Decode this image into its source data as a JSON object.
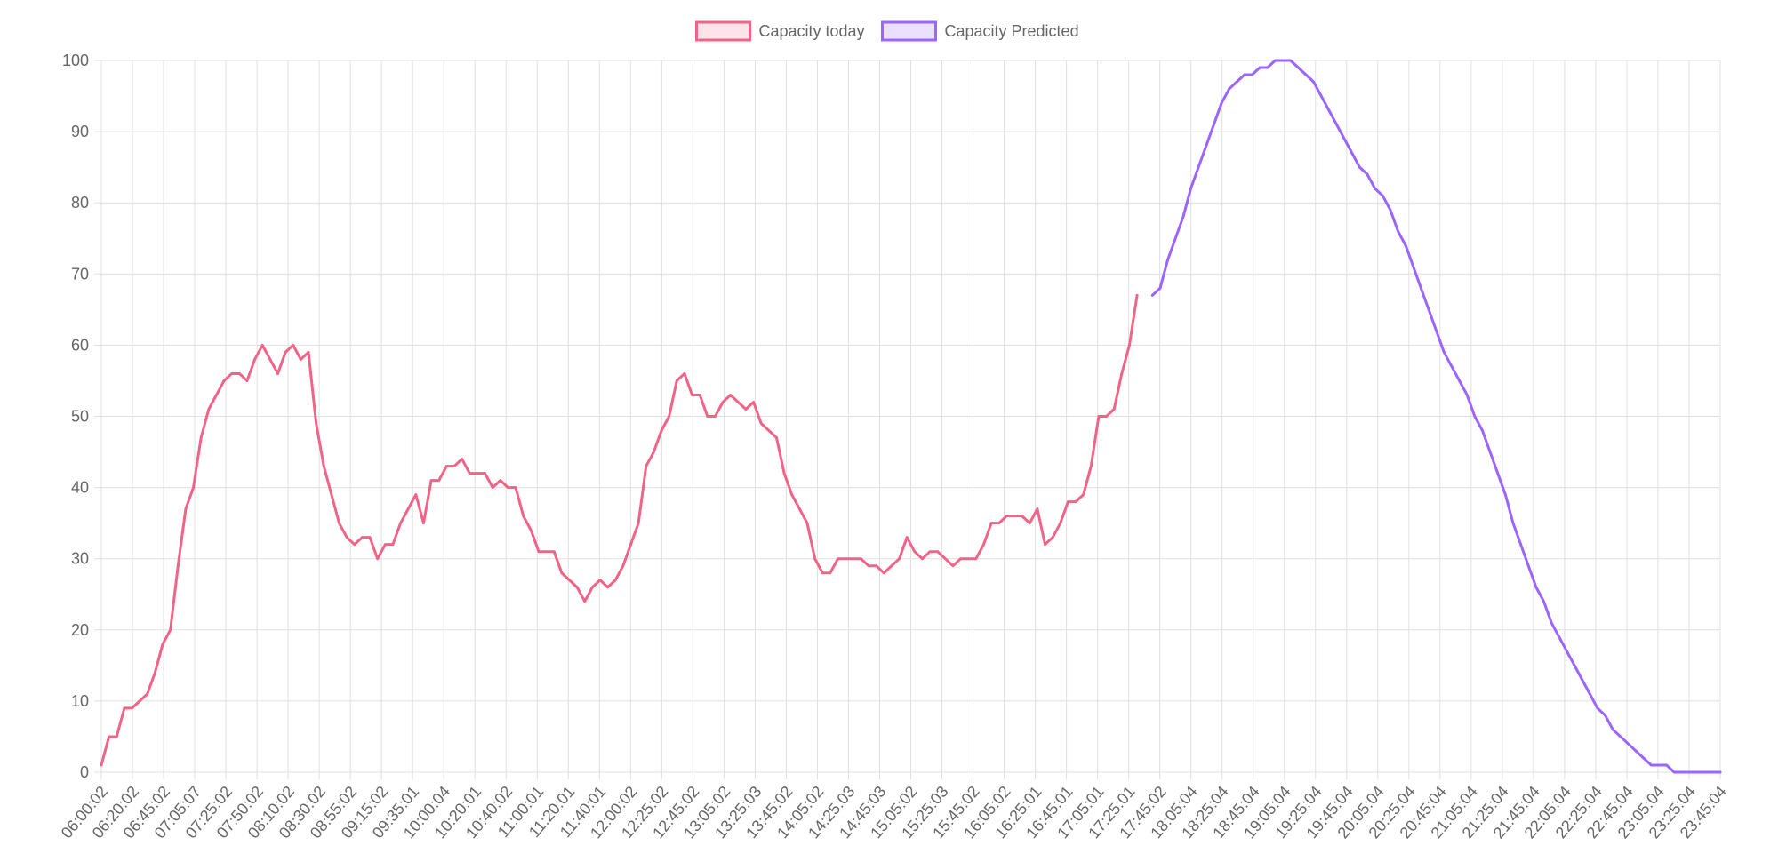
{
  "chart_data": {
    "type": "line",
    "title": "",
    "xlabel": "",
    "ylabel": "",
    "ylim": [
      0,
      100
    ],
    "y_ticks": [
      0,
      10,
      20,
      30,
      40,
      50,
      60,
      70,
      80,
      90,
      100
    ],
    "grid": true,
    "legend_position": "top-center",
    "x_tick_labels": [
      "06:00:02",
      "06:20:02",
      "06:45:02",
      "07:05:07",
      "07:25:02",
      "07:50:02",
      "08:10:02",
      "08:30:02",
      "08:55:02",
      "09:15:02",
      "09:35:01",
      "10:00:04",
      "10:20:01",
      "10:40:02",
      "11:00:01",
      "11:20:01",
      "11:40:01",
      "12:00:02",
      "12:25:02",
      "12:45:02",
      "13:05:02",
      "13:25:03",
      "13:45:02",
      "14:05:02",
      "14:25:03",
      "14:45:03",
      "15:05:02",
      "15:25:03",
      "15:45:02",
      "16:05:02",
      "16:25:01",
      "16:45:01",
      "17:05:01",
      "17:25:01",
      "17:45:02",
      "18:05:04",
      "18:25:04",
      "18:45:04",
      "19:05:04",
      "19:25:04",
      "19:45:04",
      "20:05:04",
      "20:25:04",
      "20:45:04",
      "21:05:04",
      "21:25:04",
      "21:45:04",
      "22:05:04",
      "22:25:04",
      "22:45:04",
      "23:05:04",
      "23:25:04",
      "23:45:04"
    ],
    "series": [
      {
        "name": "Capacity today",
        "color": "#f06488",
        "fill": "#fde3ea",
        "start_index": 0,
        "values": [
          1,
          5,
          5,
          9,
          9,
          10,
          11,
          14,
          18,
          20,
          29,
          37,
          40,
          47,
          51,
          53,
          55,
          56,
          56,
          55,
          58,
          60,
          58,
          56,
          59,
          60,
          58,
          59,
          49,
          43,
          39,
          35,
          33,
          32,
          33,
          33,
          30,
          32,
          32,
          35,
          37,
          39,
          35,
          41,
          41,
          43,
          43,
          44,
          42,
          42,
          42,
          40,
          41,
          40,
          40,
          36,
          34,
          31,
          31,
          31,
          28,
          27,
          26,
          24,
          26,
          27,
          26,
          27,
          29,
          32,
          35,
          43,
          45,
          48,
          50,
          55,
          56,
          53,
          53,
          50,
          50,
          52,
          53,
          52,
          51,
          52,
          49,
          48,
          47,
          42,
          39,
          37,
          35,
          30,
          28,
          28,
          30,
          30,
          30,
          30,
          29,
          29,
          28,
          29,
          30,
          33,
          31,
          30,
          31,
          31,
          30,
          29,
          30,
          30,
          30,
          32,
          35,
          35,
          36,
          36,
          36,
          35,
          37,
          32,
          33,
          35,
          38,
          38,
          39,
          43,
          50,
          50,
          51,
          56,
          60,
          67
        ]
      },
      {
        "name": "Capacity Predicted",
        "color": "#9a66ff",
        "fill": "#ebe0ff",
        "start_index": 137,
        "values": [
          67,
          68,
          72,
          75,
          78,
          82,
          85,
          88,
          91,
          94,
          96,
          97,
          98,
          98,
          99,
          99,
          100,
          100,
          100,
          99,
          98,
          97,
          95,
          93,
          91,
          89,
          87,
          85,
          84,
          82,
          81,
          79,
          76,
          74,
          71,
          68,
          65,
          62,
          59,
          57,
          55,
          53,
          50,
          48,
          45,
          42,
          39,
          35,
          32,
          29,
          26,
          24,
          21,
          19,
          17,
          15,
          13,
          11,
          9,
          8,
          6,
          5,
          4,
          3,
          2,
          1,
          1,
          1,
          0,
          0,
          0,
          0,
          0,
          0,
          0
        ]
      }
    ]
  }
}
